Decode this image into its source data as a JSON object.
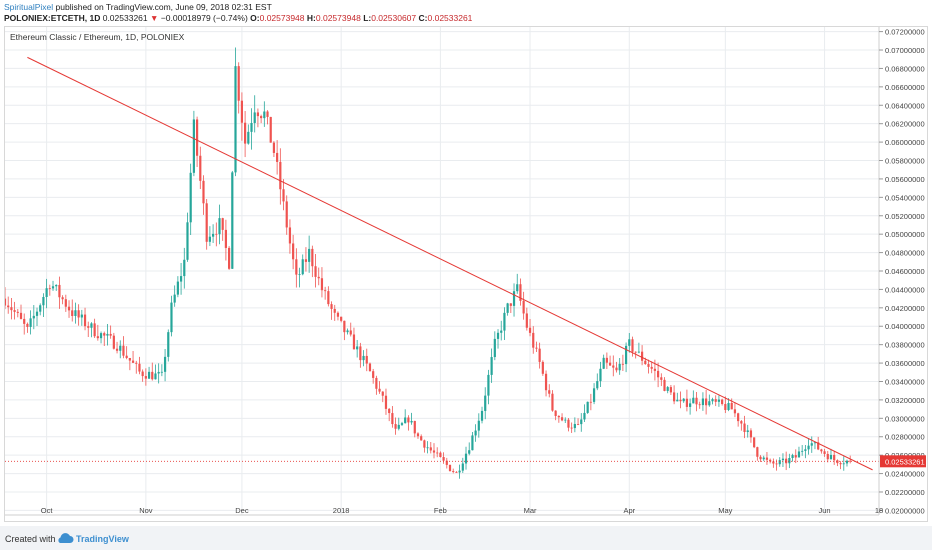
{
  "header": {
    "author": "SpiritualPixel",
    "published_text": "published on TradingView.com, June 09, 2018 02:31 EST",
    "symbol": "POLONIEX:ETCETH, 1D",
    "last": "0.02533261",
    "change": "−0.00018979 (−0.74%)",
    "o_label": "O:",
    "o_value": "0.02573948",
    "h_label": "H:",
    "h_value": "0.02573948",
    "l_label": "L:",
    "l_value": "0.02530607",
    "c_label": "C:",
    "c_value": "0.02533261"
  },
  "chart_title": "Ethereum Classic / Ethereum, 1D, POLONIEX",
  "price_tag": "0.02533261",
  "footer": {
    "created_with": "Created with",
    "brand": "TradingView"
  },
  "colors": {
    "up": "#26a69a",
    "down": "#ef5350",
    "trendline": "#e53935",
    "price_line": "#e53935",
    "grid": "#e9ecef"
  },
  "chart_data": {
    "type": "candlestick",
    "title": "Ethereum Classic / Ethereum, 1D, POLONIEX",
    "x_range": [
      "2017-09-18",
      "2018-06-18"
    ],
    "ylim": [
      0.0195,
      0.0725
    ],
    "grid": true,
    "x_ticks": [
      {
        "date": "2017-10-01",
        "label": "Oct"
      },
      {
        "date": "2017-11-01",
        "label": "Nov"
      },
      {
        "date": "2017-12-01",
        "label": "Dec"
      },
      {
        "date": "2018-01-01",
        "label": "2018"
      },
      {
        "date": "2018-02-01",
        "label": "Feb"
      },
      {
        "date": "2018-03-01",
        "label": "Mar"
      },
      {
        "date": "2018-04-01",
        "label": "Apr"
      },
      {
        "date": "2018-05-01",
        "label": "May"
      },
      {
        "date": "2018-06-01",
        "label": "Jun"
      },
      {
        "date": "2018-06-18",
        "label": "18"
      }
    ],
    "y_ticks": [
      "0.07200000",
      "0.07000000",
      "0.06800000",
      "0.06600000",
      "0.06400000",
      "0.06200000",
      "0.06000000",
      "0.05800000",
      "0.05600000",
      "0.05400000",
      "0.05200000",
      "0.05000000",
      "0.04800000",
      "0.04600000",
      "0.04400000",
      "0.04200000",
      "0.04000000",
      "0.03800000",
      "0.03600000",
      "0.03400000",
      "0.03200000",
      "0.03000000",
      "0.02800000",
      "0.02600000",
      "0.02400000",
      "0.02200000",
      "0.02000000"
    ],
    "trendline": [
      {
        "date": "2017-09-25",
        "price": 0.0692
      },
      {
        "date": "2018-06-16",
        "price": 0.0244
      }
    ],
    "last_price": 0.02533261,
    "close_path": [
      [
        "2017-09-18",
        0.043
      ],
      [
        "2017-09-25",
        0.0395
      ],
      [
        "2017-10-02",
        0.0448
      ],
      [
        "2017-10-09",
        0.0415
      ],
      [
        "2017-10-16",
        0.0395
      ],
      [
        "2017-10-23",
        0.038
      ],
      [
        "2017-10-30",
        0.035
      ],
      [
        "2017-11-06",
        0.0345
      ],
      [
        "2017-11-09",
        0.042
      ],
      [
        "2017-11-13",
        0.047
      ],
      [
        "2017-11-16",
        0.0615
      ],
      [
        "2017-11-20",
        0.05
      ],
      [
        "2017-11-24",
        0.051
      ],
      [
        "2017-11-27",
        0.047
      ],
      [
        "2017-11-29",
        0.068
      ],
      [
        "2017-12-02",
        0.06
      ],
      [
        "2017-12-05",
        0.064
      ],
      [
        "2017-12-08",
        0.063
      ],
      [
        "2017-12-11",
        0.059
      ],
      [
        "2017-12-14",
        0.053
      ],
      [
        "2017-12-18",
        0.045
      ],
      [
        "2017-12-22",
        0.048
      ],
      [
        "2017-12-26",
        0.044
      ],
      [
        "2017-12-30",
        0.041
      ],
      [
        "2018-01-05",
        0.038
      ],
      [
        "2018-01-10",
        0.035
      ],
      [
        "2018-01-14",
        0.032
      ],
      [
        "2018-01-18",
        0.0285
      ],
      [
        "2018-01-22",
        0.03
      ],
      [
        "2018-01-25",
        0.028
      ],
      [
        "2018-01-29",
        0.0265
      ],
      [
        "2018-02-02",
        0.0252
      ],
      [
        "2018-02-06",
        0.024
      ],
      [
        "2018-02-10",
        0.027
      ],
      [
        "2018-02-14",
        0.031
      ],
      [
        "2018-02-18",
        0.038
      ],
      [
        "2018-02-22",
        0.042
      ],
      [
        "2018-02-25",
        0.044
      ],
      [
        "2018-02-28",
        0.04
      ],
      [
        "2018-03-04",
        0.036
      ],
      [
        "2018-03-08",
        0.031
      ],
      [
        "2018-03-12",
        0.0295
      ],
      [
        "2018-03-16",
        0.029
      ],
      [
        "2018-03-20",
        0.032
      ],
      [
        "2018-03-24",
        0.036
      ],
      [
        "2018-03-28",
        0.035
      ],
      [
        "2018-04-01",
        0.038
      ],
      [
        "2018-04-05",
        0.0365
      ],
      [
        "2018-04-09",
        0.035
      ],
      [
        "2018-04-13",
        0.033
      ],
      [
        "2018-04-17",
        0.0315
      ],
      [
        "2018-04-21",
        0.032
      ],
      [
        "2018-04-25",
        0.0318
      ],
      [
        "2018-04-29",
        0.0315
      ],
      [
        "2018-05-03",
        0.031
      ],
      [
        "2018-05-07",
        0.029
      ],
      [
        "2018-05-11",
        0.0262
      ],
      [
        "2018-05-15",
        0.025
      ],
      [
        "2018-05-19",
        0.0252
      ],
      [
        "2018-05-23",
        0.0258
      ],
      [
        "2018-05-27",
        0.0275
      ],
      [
        "2018-05-31",
        0.0265
      ],
      [
        "2018-06-04",
        0.0255
      ],
      [
        "2018-06-09",
        0.0253
      ]
    ]
  }
}
